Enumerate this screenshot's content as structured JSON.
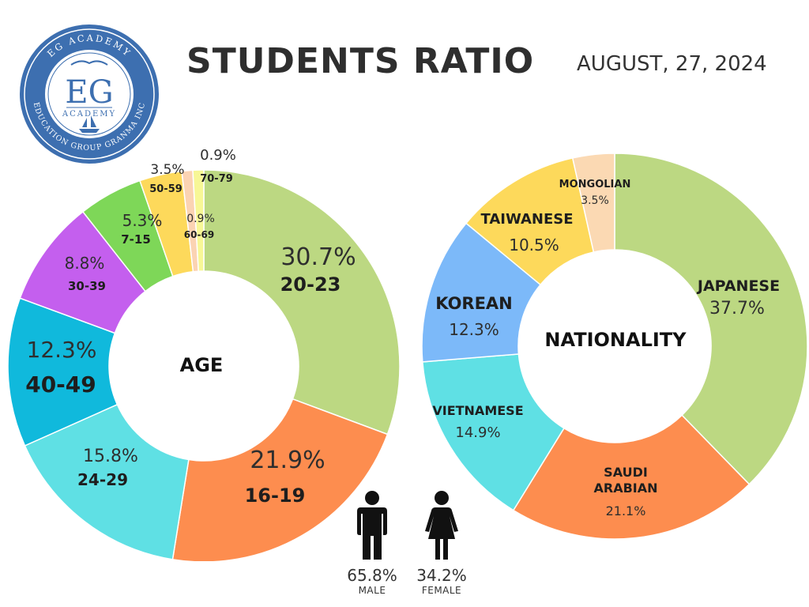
{
  "header": {
    "title": "STUDENTS RATIO",
    "date": "AUGUST, 27, 2024"
  },
  "logo": {
    "top_arc": "EG ACADEMY",
    "monogram": "EG",
    "sub": "ACADEMY",
    "bottom_arc": "EDUCATION GROUP GRANMA INC",
    "colors": {
      "ring": "#3d6fb0",
      "inner": "#ffffff"
    }
  },
  "chart_data": [
    {
      "type": "pie",
      "center_label": "AGE",
      "slices": [
        {
          "label": "20-23",
          "value": 30.7,
          "display": "30.7%",
          "color": "#bcd882"
        },
        {
          "label": "16-19",
          "value": 21.9,
          "display": "21.9%",
          "color": "#fd8d4f"
        },
        {
          "label": "24-29",
          "value": 15.8,
          "display": "15.8%",
          "color": "#5fe0e4"
        },
        {
          "label": "40-49",
          "value": 12.3,
          "display": "12.3%",
          "color": "#10b9dc"
        },
        {
          "label": "30-39",
          "value": 8.8,
          "display": "8.8%",
          "color": "#c45fee"
        },
        {
          "label": "7-15",
          "value": 5.3,
          "display": "5.3%",
          "color": "#7ed758"
        },
        {
          "label": "50-59",
          "value": 3.5,
          "display": "3.5%",
          "color": "#fdd95b"
        },
        {
          "label": "60-69",
          "value": 0.9,
          "display": "0.9%",
          "color": "#fbd3b3"
        },
        {
          "label": "70-79",
          "value": 0.9,
          "display": "0.9%",
          "color": "#f7f796"
        }
      ]
    },
    {
      "type": "pie",
      "center_label": "NATIONALITY",
      "slices": [
        {
          "label": "JAPANESE",
          "value": 37.7,
          "display": "37.7%",
          "color": "#bcd882"
        },
        {
          "label": "SAUDI ARABIAN",
          "value": 21.1,
          "display": "21.1%",
          "color": "#fd8d4f"
        },
        {
          "label": "VIETNAMESE",
          "value": 14.9,
          "display": "14.9%",
          "color": "#5fe0e4"
        },
        {
          "label": "KOREAN",
          "value": 12.3,
          "display": "12.3%",
          "color": "#7cb9f9"
        },
        {
          "label": "TAIWANESE",
          "value": 10.5,
          "display": "10.5%",
          "color": "#fdd95b"
        },
        {
          "label": "MONGOLIAN",
          "value": 3.5,
          "display": "3.5%",
          "color": "#fbd9b3"
        }
      ]
    }
  ],
  "gender": {
    "male": {
      "display": "65.8%",
      "label": "MALE",
      "value": 65.8,
      "icon": "male-icon"
    },
    "female": {
      "display": "34.2%",
      "label": "FEMALE",
      "value": 34.2,
      "icon": "female-icon"
    }
  }
}
